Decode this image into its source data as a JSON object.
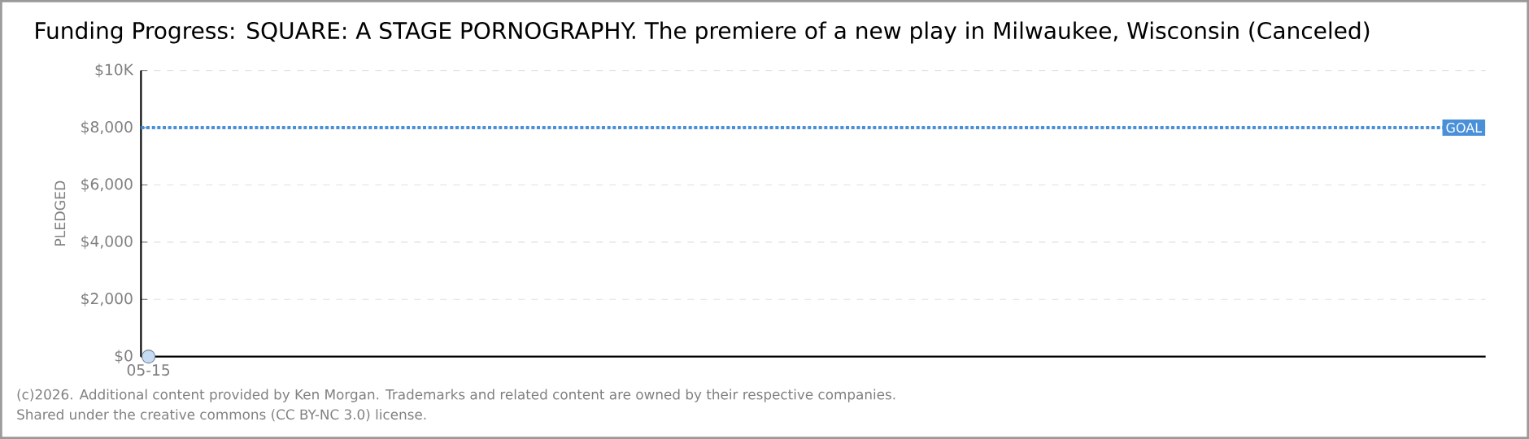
{
  "chart_data": {
    "type": "scatter",
    "title": "Funding Progress: SQUARE: A STAGE PORNOGRAPHY. The premiere of a new play in Milwaukee, Wisconsin (Canceled)",
    "ylabel": "PLEDGED",
    "categories": [
      "05-15"
    ],
    "series": [
      {
        "color": "#c6dcf5",
        "values": [
          0
        ]
      }
    ],
    "ylim": [
      0,
      10000
    ],
    "yticks": [
      {
        "value": 0,
        "label": "$0"
      },
      {
        "value": 2000,
        "label": "$2,000"
      },
      {
        "value": 4000,
        "label": "$4,000"
      },
      {
        "value": 6000,
        "label": "$6,000"
      },
      {
        "value": 8000,
        "label": "$8,000"
      },
      {
        "value": 10000,
        "label": "$10K"
      }
    ],
    "grid": "y",
    "ref_lines": [
      {
        "axis": "y",
        "value": 8000,
        "label": "GOAL",
        "color": "#4a90d9",
        "line_style": "dotted"
      }
    ],
    "annotations": [
      "(c)2026. Additional content provided by Ken Morgan. Trademarks and related content are owned by their respective companies.",
      "Shared under the creative commons (CC BY-NC 3.0) license."
    ]
  }
}
